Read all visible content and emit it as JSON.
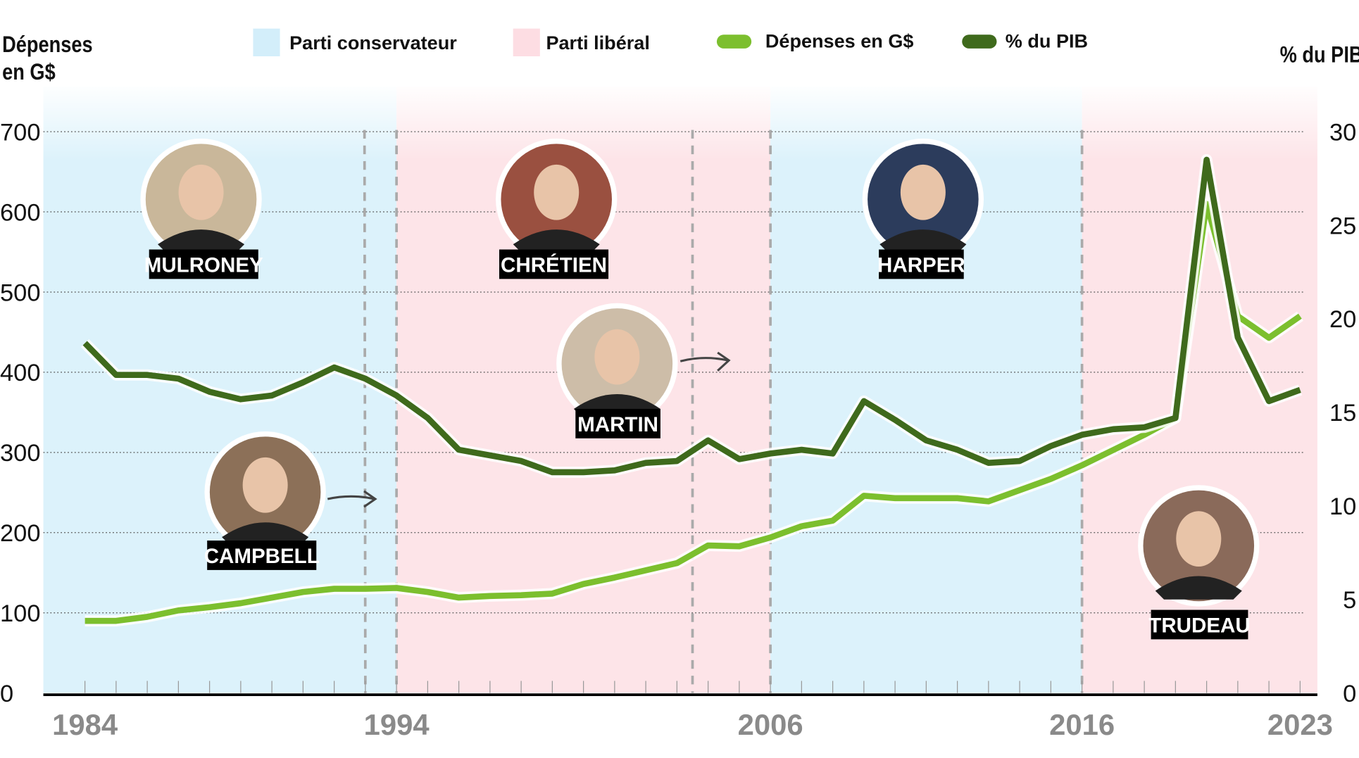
{
  "chart_data": {
    "type": "line",
    "left_axis_title": "Dépenses en G$",
    "left_axis_title_lines": [
      "Dépenses",
      "en G$"
    ],
    "right_axis_title": "% du PIB",
    "left_ylim": [
      0,
      700
    ],
    "right_ylim": [
      0,
      30
    ],
    "left_ticks": [
      "0",
      "100",
      "200",
      "300",
      "400",
      "500",
      "600",
      "700"
    ],
    "right_ticks": [
      "0",
      "5",
      "10",
      "15",
      "20",
      "25",
      "30"
    ],
    "x_tick_labels": [
      "1984",
      "1994",
      "2006",
      "2016",
      "2023"
    ],
    "legend": {
      "conservative": "Parti conservateur",
      "liberal": "Parti libéral",
      "spending": "Dépenses en G$",
      "gdp": "% du PIB"
    },
    "colors": {
      "conservative": "#dcf2fb",
      "liberal": "#fde4e8",
      "spending": "#7cbf2e",
      "gdp": "#3f6a1c"
    },
    "x": [
      1984,
      1985,
      1986,
      1987,
      1988,
      1989,
      1990,
      1991,
      1992,
      1993,
      1994,
      1995,
      1996,
      1997,
      1998,
      1999,
      2000,
      2001,
      2002,
      2003,
      2004,
      2005,
      2006,
      2007,
      2008,
      2009,
      2010,
      2011,
      2012,
      2013,
      2014,
      2015,
      2016,
      2017,
      2018,
      2019,
      2020,
      2021,
      2022,
      2023
    ],
    "series": [
      {
        "name": "Dépenses en G$",
        "axis": "left",
        "values": [
          90,
          90,
          95,
          103,
          107,
          112,
          119,
          126,
          130,
          130,
          131,
          126,
          119,
          121,
          122,
          124,
          136,
          144,
          153,
          162,
          184,
          183,
          194,
          208,
          215,
          246,
          243,
          243,
          243,
          239,
          253,
          267,
          284,
          303,
          322,
          343,
          610,
          470,
          443,
          470
        ]
      },
      {
        "name": "% du PIB",
        "axis": "right",
        "values": [
          18.7,
          17.0,
          17.0,
          16.8,
          16.1,
          15.7,
          15.9,
          16.6,
          17.4,
          16.8,
          15.9,
          14.7,
          13.0,
          12.7,
          12.4,
          11.8,
          11.8,
          11.9,
          12.3,
          12.4,
          13.5,
          12.5,
          12.8,
          13.0,
          12.8,
          15.6,
          14.6,
          13.5,
          13.0,
          12.3,
          12.4,
          13.2,
          13.8,
          14.1,
          14.2,
          14.7,
          28.5,
          19.0,
          15.6,
          16.2
        ]
      }
    ],
    "party_periods": [
      {
        "party": "conservative",
        "from": 1984,
        "to": 1994
      },
      {
        "party": "liberal",
        "from": 1994,
        "to": 2006
      },
      {
        "party": "conservative",
        "from": 2006,
        "to": 2016
      },
      {
        "party": "liberal",
        "from": 2016,
        "to": 2023.6
      }
    ],
    "transitions": [
      1993,
      1994,
      2003.5,
      2006,
      2016
    ],
    "prime_ministers": [
      "MULRONEY",
      "CAMPBELL",
      "CHRÉTIEN",
      "MARTIN",
      "HARPER",
      "TRUDEAU"
    ]
  }
}
